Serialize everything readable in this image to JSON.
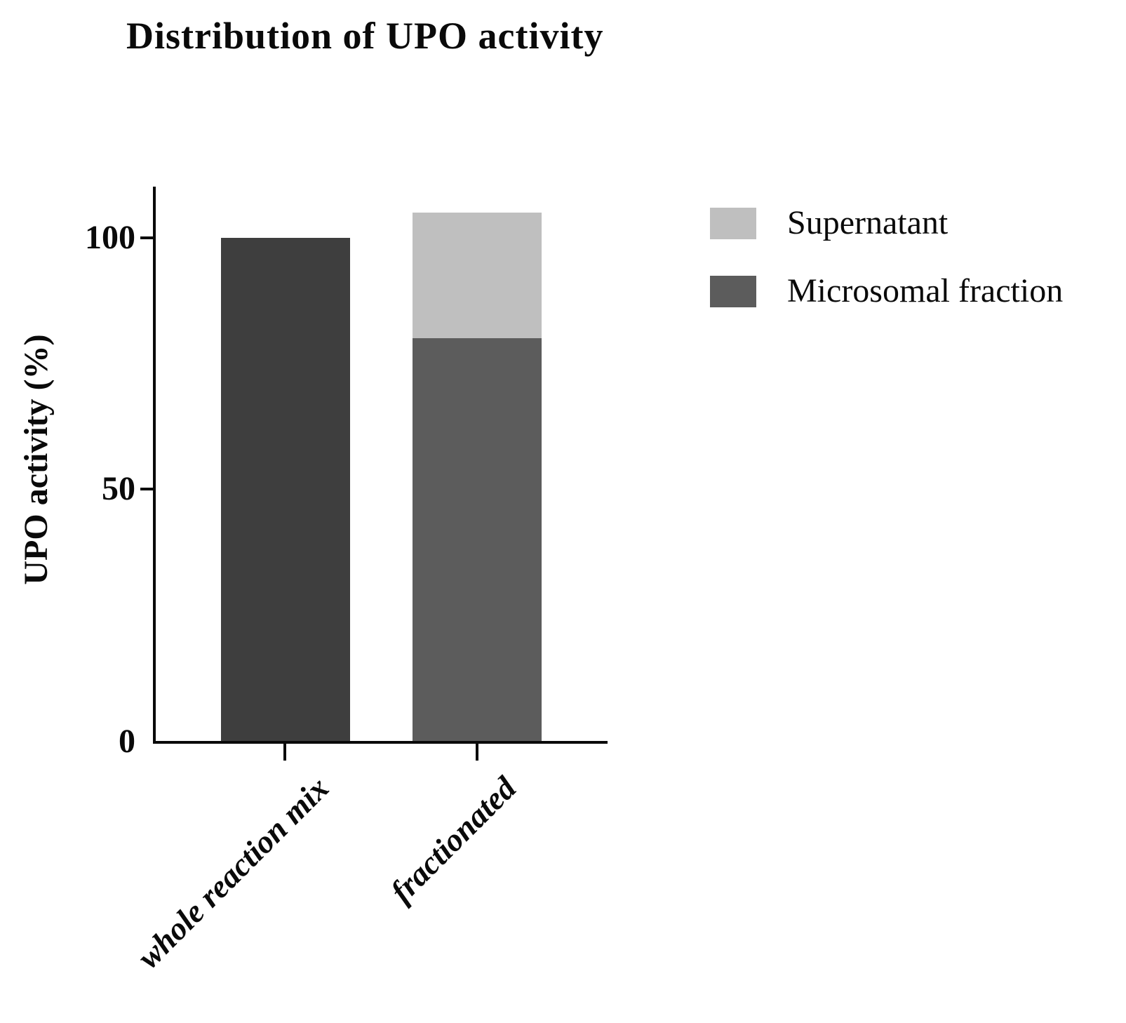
{
  "title": "Distribution of UPO activity",
  "y_axis": {
    "label": "UPO activity (%)",
    "tick_labels": [
      "100",
      "50",
      "0"
    ]
  },
  "x_axis": {
    "category_labels": [
      "whole reaction mix",
      "fractionated"
    ]
  },
  "legend": {
    "items": [
      {
        "label": "Supernatant",
        "color": "#bfbfbf"
      },
      {
        "label": "Microsomal fraction",
        "color": "#5c5c5c"
      }
    ]
  },
  "chart_data": {
    "type": "bar",
    "stacked": true,
    "title": "Distribution of UPO activity",
    "categories": [
      "whole reaction mix",
      "fractionated"
    ],
    "series": [
      {
        "name": "Microsomal fraction",
        "color": "#5c5c5c",
        "bar_colors": [
          "#3e3e3e",
          "#5c5c5c"
        ],
        "values": [
          100,
          80
        ]
      },
      {
        "name": "Supernatant",
        "color": "#bfbfbf",
        "bar_colors": [
          "#bfbfbf",
          "#bfbfbf"
        ],
        "values": [
          0,
          25
        ]
      }
    ],
    "ylabel": "UPO activity (%)",
    "xlabel": "",
    "ylim": [
      0,
      110
    ],
    "yticks": [
      0,
      50,
      100
    ],
    "grid": false,
    "legend_position": "top-right"
  }
}
